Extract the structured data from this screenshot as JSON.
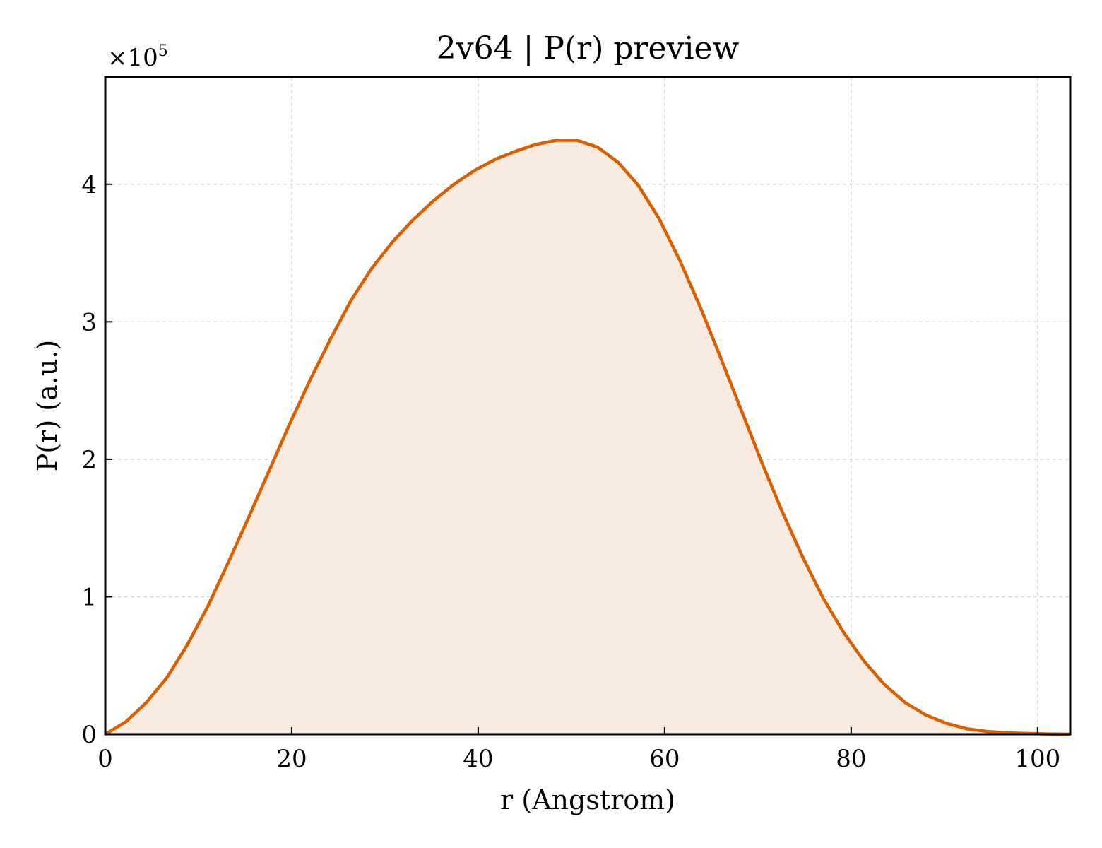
{
  "chart_data": {
    "type": "area",
    "title": "2v64 | P(r) preview",
    "xlabel": "r (Angstrom)",
    "ylabel": "P(r) (a.u.)",
    "y_scale_label": "×10",
    "y_scale_exponent": "5",
    "xlim": [
      0,
      103.5
    ],
    "ylim": [
      0,
      4.78
    ],
    "xticks": [
      0,
      20,
      40,
      60,
      80,
      100
    ],
    "yticks": [
      0,
      1,
      2,
      3,
      4
    ],
    "grid": true,
    "line_color": "#d95f02",
    "fill_color": "#f9ebe0",
    "series": [
      {
        "x": [
          0,
          2.2,
          4.4,
          6.6,
          8.8,
          11.0,
          13.2,
          15.4,
          17.6,
          19.8,
          22.0,
          24.2,
          26.4,
          28.6,
          30.8,
          33.0,
          35.2,
          37.4,
          39.6,
          41.8,
          44.0,
          46.2,
          48.4,
          50.6,
          52.8,
          55.0,
          57.2,
          59.4,
          61.6,
          63.8,
          66.0,
          68.2,
          70.4,
          72.6,
          74.8,
          77.0,
          79.2,
          81.4,
          83.6,
          85.8,
          88.0,
          90.2,
          92.4,
          94.6,
          96.8,
          99.0,
          101.2,
          103.5
        ],
        "y": [
          0.0,
          0.09,
          0.23,
          0.41,
          0.65,
          0.93,
          1.25,
          1.58,
          1.92,
          2.26,
          2.58,
          2.88,
          3.16,
          3.39,
          3.58,
          3.74,
          3.88,
          4.0,
          4.1,
          4.18,
          4.24,
          4.29,
          4.32,
          4.32,
          4.27,
          4.16,
          3.99,
          3.75,
          3.45,
          3.11,
          2.74,
          2.36,
          1.98,
          1.62,
          1.29,
          0.99,
          0.74,
          0.53,
          0.36,
          0.23,
          0.14,
          0.08,
          0.04,
          0.02,
          0.01,
          0.005,
          0.002,
          0.0
        ]
      }
    ]
  }
}
